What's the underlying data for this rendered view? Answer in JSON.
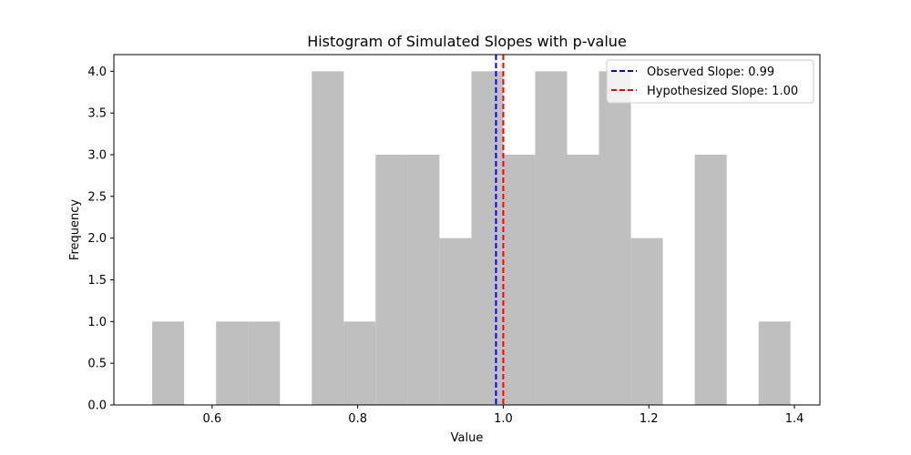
{
  "chart_data": {
    "type": "bar",
    "subtype": "histogram",
    "title": "Histogram of Simulated Slopes with p-value",
    "xlabel": "Value",
    "ylabel": "Frequency",
    "xlim": [
      0.465,
      1.435
    ],
    "ylim": [
      0,
      4.2
    ],
    "bar_color": "#bfbfbf",
    "bin_edges": [
      0.5177,
      0.5615,
      0.6054,
      0.6492,
      0.6931,
      0.7369,
      0.7808,
      0.8246,
      0.8685,
      0.9123,
      0.9562,
      1.0,
      1.0438,
      1.0877,
      1.1315,
      1.1754,
      1.2192,
      1.2631,
      1.3069,
      1.3508,
      1.3946
    ],
    "counts": [
      1,
      0,
      1,
      1,
      0,
      4,
      1,
      3,
      3,
      2,
      4,
      3,
      4,
      3,
      4,
      2,
      0,
      3,
      0,
      1
    ],
    "x_ticks": [
      0.6,
      0.8,
      1.0,
      1.2,
      1.4
    ],
    "x_tick_labels": [
      "0.6",
      "0.8",
      "1.0",
      "1.2",
      "1.4"
    ],
    "y_ticks": [
      0,
      0.5,
      1.0,
      1.5,
      2.0,
      2.5,
      3.0,
      3.5,
      4.0
    ],
    "y_tick_labels": [
      "0.0",
      "0.5",
      "1.0",
      "1.5",
      "2.0",
      "2.5",
      "3.0",
      "3.5",
      "4.0"
    ],
    "grid": false,
    "reference_lines": [
      {
        "label": "Observed Slope: 0.99",
        "value": 0.99,
        "color": "#0000ff",
        "style": "dashed"
      },
      {
        "label": "Hypothesized Slope: 1.00",
        "value": 1.0,
        "color": "#ff0000",
        "style": "dashed"
      }
    ],
    "legend": {
      "position": "top-right"
    }
  }
}
